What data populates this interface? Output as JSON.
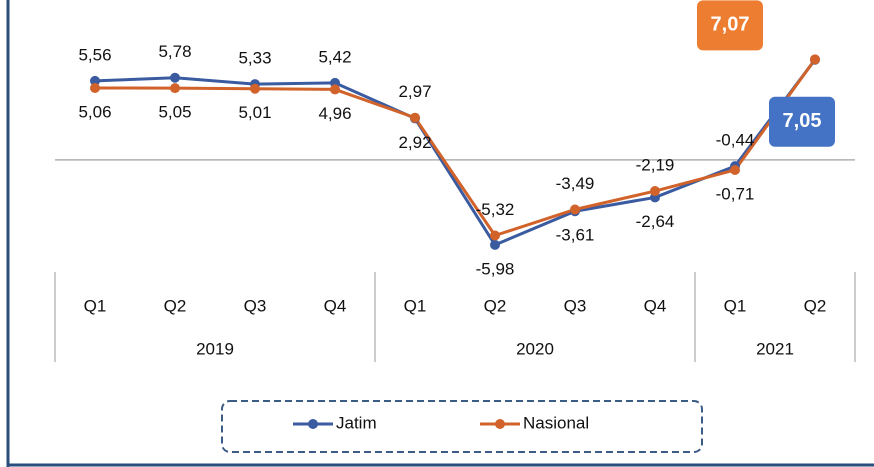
{
  "chart_data": {
    "type": "line",
    "categories": [
      "Q1",
      "Q2",
      "Q3",
      "Q4",
      "Q1",
      "Q2",
      "Q3",
      "Q4",
      "Q1",
      "Q2"
    ],
    "groups": [
      {
        "label": "2019",
        "size": 4
      },
      {
        "label": "2020",
        "size": 4
      },
      {
        "label": "2021",
        "size": 2
      }
    ],
    "series": [
      {
        "name": "Jatim",
        "color": "#3a5ba0",
        "box_color": "#4472c4",
        "values": [
          5.56,
          5.78,
          5.33,
          5.42,
          2.92,
          -5.98,
          -3.61,
          -2.64,
          -0.44,
          7.05
        ],
        "value_labels": [
          "5,56",
          "5,78",
          "5,33",
          "5,42",
          "2,92",
          "-5,98",
          "-3,61",
          "-2,64",
          "-0,44",
          "7,05"
        ]
      },
      {
        "name": "Nasional",
        "color": "#d0622a",
        "box_color": "#ed7d31",
        "values": [
          5.06,
          5.05,
          5.01,
          4.96,
          2.97,
          -5.32,
          -3.49,
          -2.19,
          -0.71,
          7.07
        ],
        "value_labels": [
          "5,06",
          "5,05",
          "5,01",
          "4,96",
          "2,97",
          "-5,32",
          "-3,49",
          "-2,19",
          "-0,71",
          "7,07"
        ]
      }
    ],
    "ylim": [
      -8,
      9
    ],
    "legend": "bottom"
  }
}
